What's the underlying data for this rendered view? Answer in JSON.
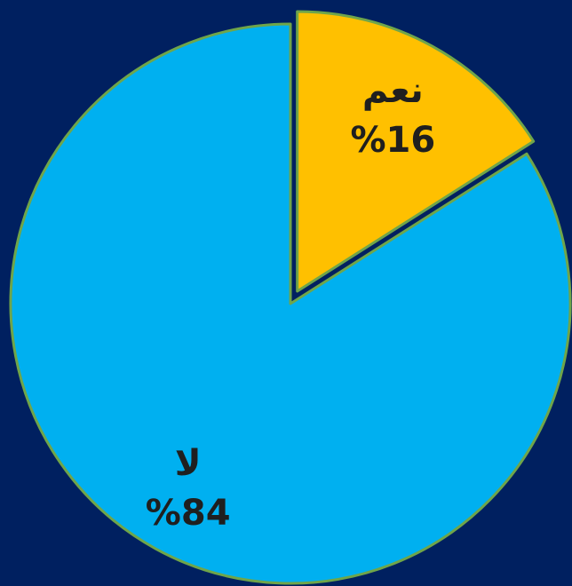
{
  "chart_data": {
    "type": "pie",
    "categories": [
      "نعم",
      "لا"
    ],
    "values": [
      16,
      84
    ],
    "value_labels": [
      "%16",
      "%84"
    ],
    "colors": [
      "#FFC000",
      "#00B0F0"
    ],
    "exploded": [
      true,
      false
    ]
  }
}
